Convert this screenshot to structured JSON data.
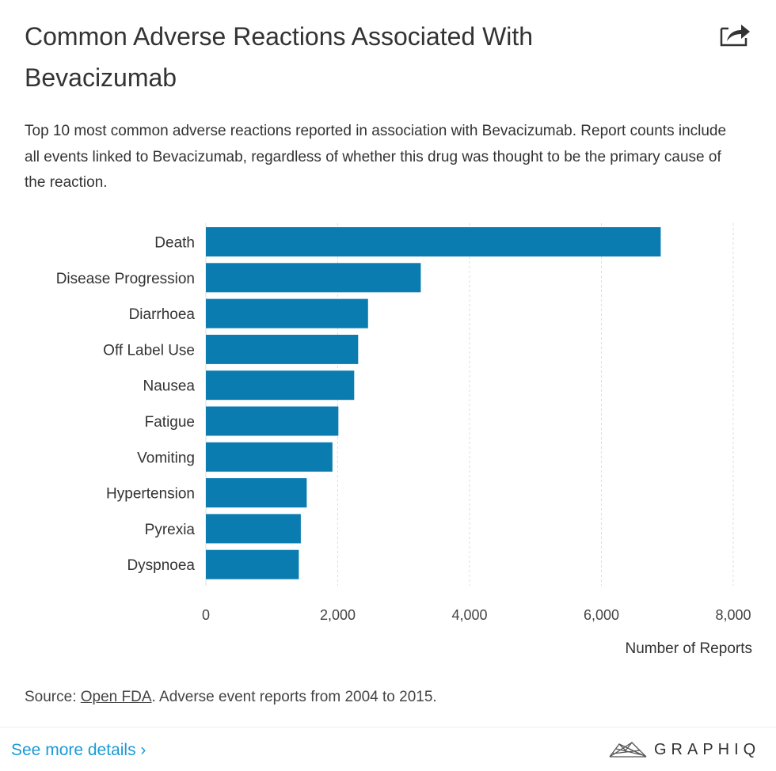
{
  "header": {
    "title": "Common Adverse Reactions Associated With Bevacizumab",
    "share_icon": "share-icon"
  },
  "subtitle": "Top 10 most common adverse reactions reported in association with Bevacizumab. Report counts include all events linked to Bevacizumab, regardless of whether this drug was thought to be the primary cause of the reaction.",
  "chart_data": {
    "type": "bar",
    "orientation": "horizontal",
    "categories": [
      "Death",
      "Disease Progression",
      "Diarrhoea",
      "Off Label Use",
      "Nausea",
      "Fatigue",
      "Vomiting",
      "Hypertension",
      "Pyrexia",
      "Dyspnoea"
    ],
    "values": [
      6900,
      3260,
      2460,
      2310,
      2250,
      2010,
      1920,
      1530,
      1440,
      1410
    ],
    "xlabel": "Number of Reports",
    "xlim": [
      0,
      8000
    ],
    "xticks": [
      0,
      2000,
      4000,
      6000,
      8000
    ],
    "xtick_labels": [
      "0",
      "2,000",
      "4,000",
      "6,000",
      "8,000"
    ],
    "grid": "vertical dashed",
    "bar_color": "#0a7cb0"
  },
  "footer": {
    "source_prefix": "Source: ",
    "source_link": "Open FDA",
    "source_suffix": ". Adverse event reports from 2004 to 2015.",
    "see_more": "See more details ›",
    "logo": "GRAPHIQ"
  }
}
